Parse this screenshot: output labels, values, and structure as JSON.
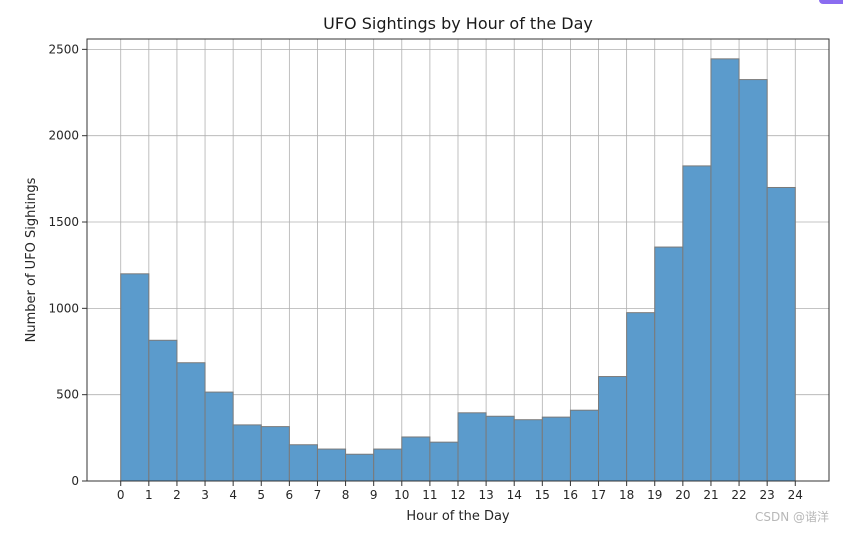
{
  "watermark": "CSDN @谐洋",
  "chart_data": {
    "type": "bar",
    "title": "UFO Sightings by Hour of the Day",
    "xlabel": "Hour of the Day",
    "ylabel": "Number of UFO Sightings",
    "bin_edges": [
      0,
      1,
      2,
      3,
      4,
      5,
      6,
      7,
      8,
      9,
      10,
      11,
      12,
      13,
      14,
      15,
      16,
      17,
      18,
      19,
      20,
      21,
      22,
      23,
      24
    ],
    "values": [
      1200,
      815,
      685,
      515,
      325,
      315,
      210,
      185,
      155,
      185,
      255,
      225,
      395,
      375,
      355,
      370,
      410,
      605,
      975,
      1355,
      1825,
      2445,
      2325,
      1700
    ],
    "x_ticks": [
      "0",
      "1",
      "2",
      "3",
      "4",
      "5",
      "6",
      "7",
      "8",
      "9",
      "10",
      "11",
      "12",
      "13",
      "14",
      "15",
      "16",
      "17",
      "18",
      "19",
      "20",
      "21",
      "22",
      "23",
      "24"
    ],
    "y_ticks": [
      "0",
      "500",
      "1000",
      "1500",
      "2000",
      "2500"
    ],
    "xlim": [
      -1.2,
      25.2
    ],
    "ylim": [
      0,
      2560
    ],
    "grid": true,
    "bar_color": "#5b9bcc",
    "edge_color": "#7a7a7a"
  }
}
